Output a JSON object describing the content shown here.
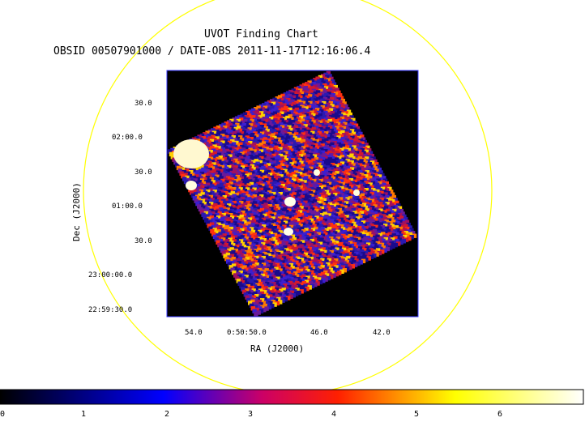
{
  "title": "UVOT Finding Chart",
  "subtitle": "OBSID 00507901000 / DATE-OBS 2011-11-17T12:16:06.4",
  "x_axis": {
    "label": "RA (J2000)",
    "ticks": [
      "54.0",
      "0:50:50.0",
      "46.0",
      "42.0"
    ]
  },
  "y_axis": {
    "label": "Dec (J2000)",
    "ticks": [
      "30.0",
      "02:00.0",
      "30.0",
      "01:00.0",
      "30.0",
      "23:00:00.0",
      "22:59:30.0"
    ]
  },
  "colorbar": {
    "ticks": [
      "0",
      "1",
      "2",
      "3",
      "4",
      "5",
      "6"
    ],
    "colors": [
      "#000000",
      "#0000ff",
      "#ff0000",
      "#ffff00",
      "#ffffff"
    ]
  },
  "colors": {
    "circle": "#ffff00",
    "frame": "#3333ff",
    "background": "#000000"
  }
}
